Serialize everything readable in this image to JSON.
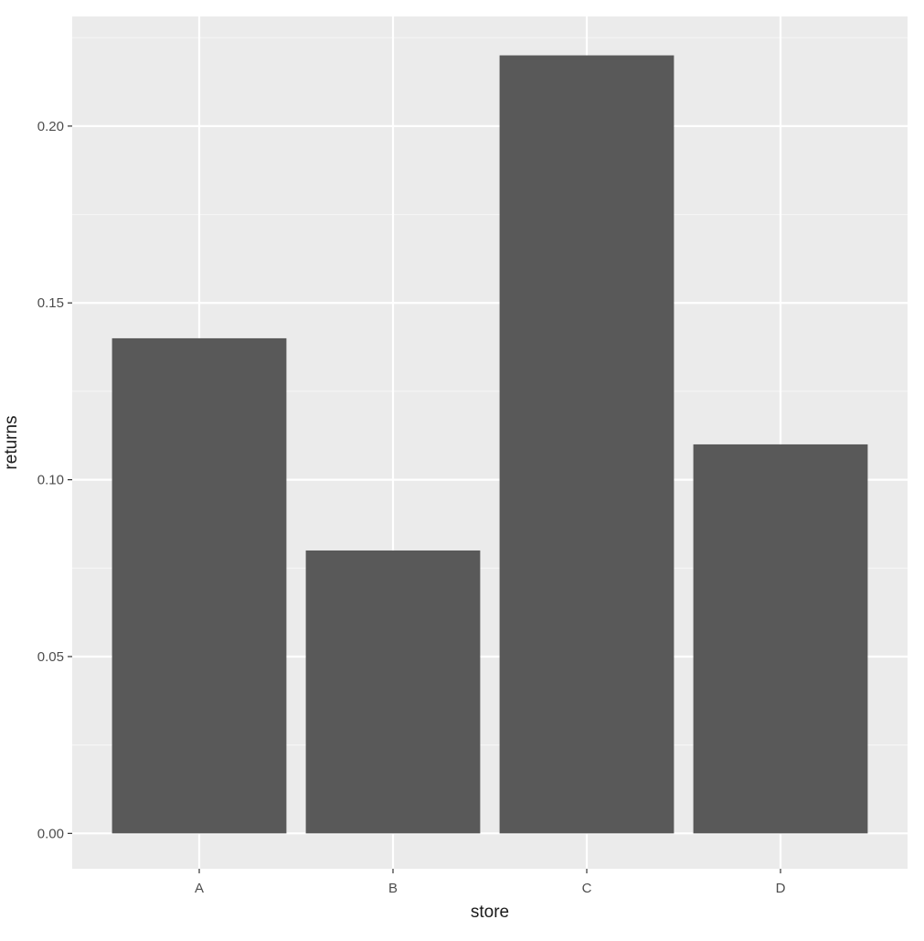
{
  "chart_data": {
    "type": "bar",
    "categories": [
      "A",
      "B",
      "C",
      "D"
    ],
    "values": [
      0.14,
      0.08,
      0.22,
      0.11
    ],
    "xlabel": "store",
    "ylabel": "returns",
    "ylim": [
      -0.01,
      0.231
    ],
    "yticks": [
      0.0,
      0.05,
      0.1,
      0.15,
      0.2
    ],
    "ytick_labels": [
      "0.00",
      "0.05",
      "0.10",
      "0.15",
      "0.20"
    ],
    "grid": true,
    "legend": "none",
    "colors": {
      "panel_background": "#ebebeb",
      "grid_major": "#ffffff",
      "grid_minor": "#f5f5f5",
      "bar_fill": "#595959",
      "tick_color": "#333333"
    }
  }
}
